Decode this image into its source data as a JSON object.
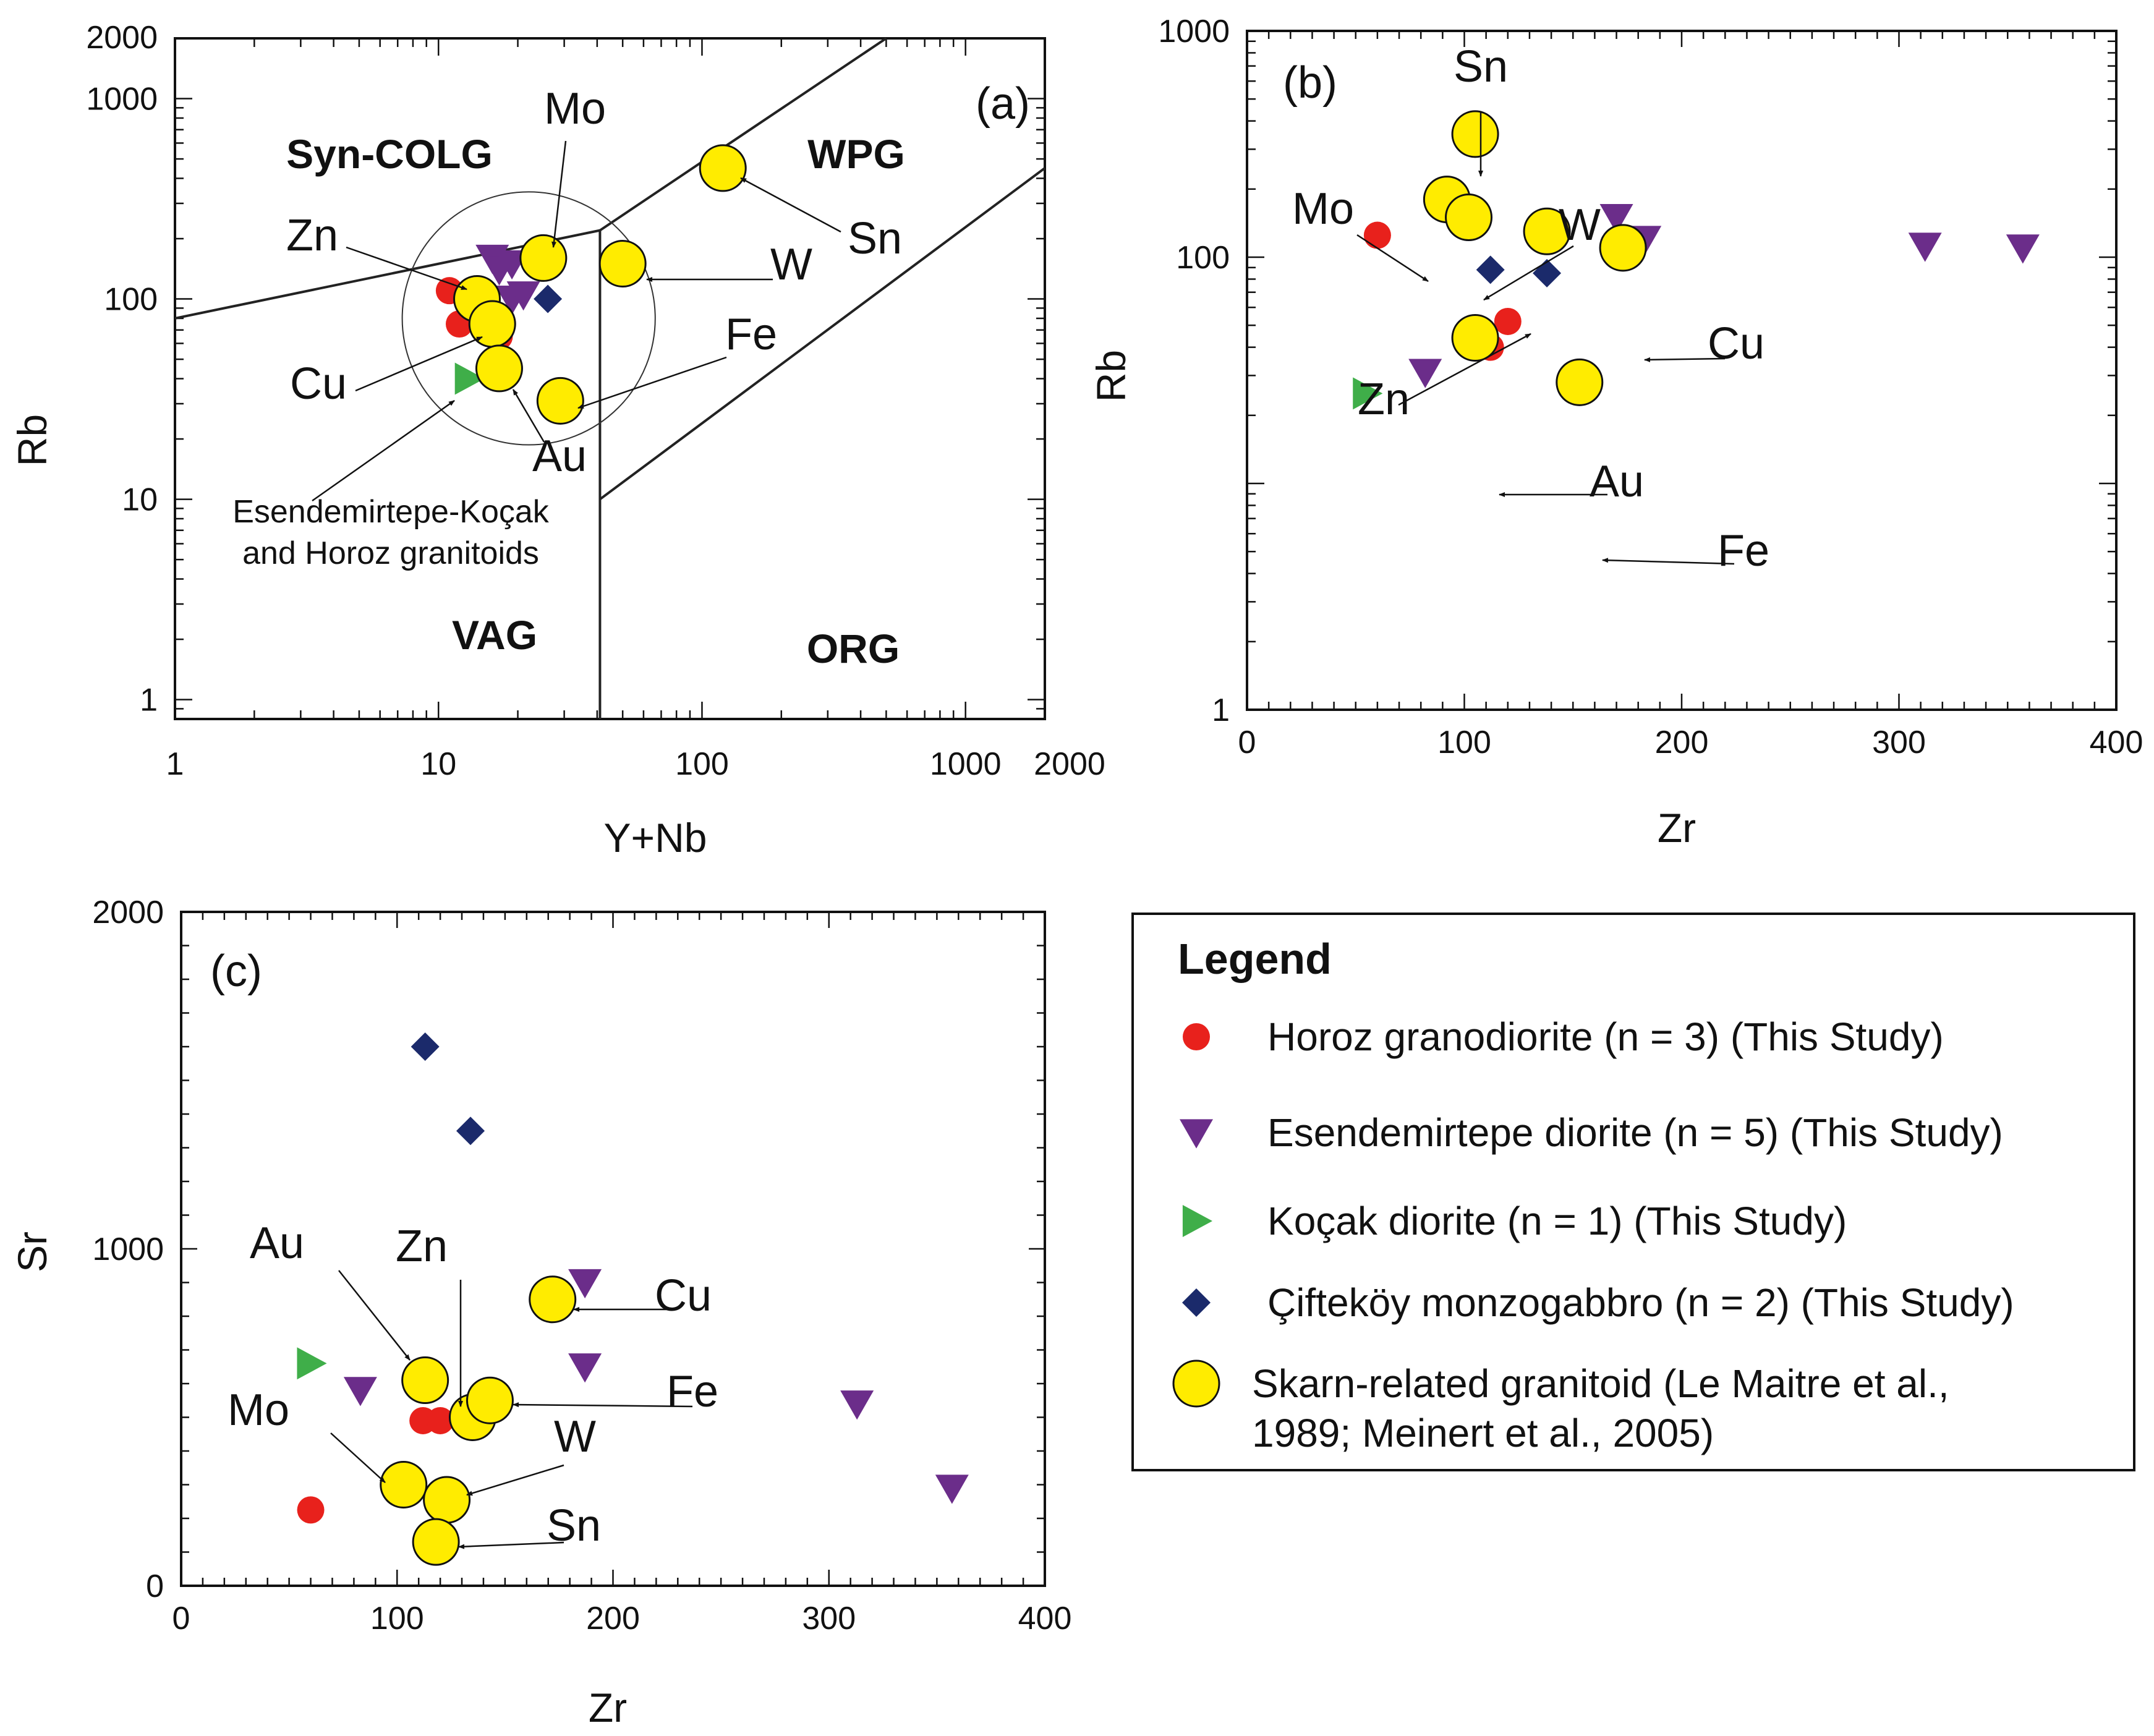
{
  "colors": {
    "horoz": "#e8211c",
    "esendemirtepe": "#6b2d8a",
    "kocak": "#3fae49",
    "ciftekoy": "#1b2a6b",
    "skarn": "#ffec00"
  },
  "legend": {
    "title": "Legend",
    "items": [
      {
        "key": "horoz",
        "marker": "circle",
        "label": "Horoz granodiorite (n = 3) (This Study)"
      },
      {
        "key": "esendemirtepe",
        "marker": "triangle-down",
        "label": "Esendemirtepe diorite (n = 5) (This Study)"
      },
      {
        "key": "kocak",
        "marker": "triangle-right",
        "label": "Koçak diorite (n = 1) (This Study)"
      },
      {
        "key": "ciftekoy",
        "marker": "diamond",
        "label": "Çifteköy monzogabbro (n = 2) (This Study)"
      },
      {
        "key": "skarn",
        "marker": "big-circle",
        "label_line1": "Skarn-related granitoid (Le Maitre et al.,",
        "label_line2": "1989; Meinert et al., 2005)"
      }
    ]
  },
  "chart_data": [
    {
      "id": "a",
      "type": "scatter",
      "panel_label": "(a)",
      "xlabel": "Y+Nb",
      "ylabel": "Rb",
      "xscale": "log",
      "yscale": "log",
      "xlim": [
        1,
        2000
      ],
      "ylim": [
        0.8,
        2000
      ],
      "xticks": [
        "1",
        "10",
        "100",
        "1000",
        "2000"
      ],
      "xtick_values": [
        1,
        10,
        100,
        1000,
        2000
      ],
      "yticks": [
        "1",
        "10",
        "100",
        "1000",
        "2000"
      ],
      "ytick_values": [
        1,
        10,
        100,
        1000,
        2000
      ],
      "fields": [
        "Syn-COLG",
        "WPG",
        "VAG",
        "ORG"
      ],
      "boundaries": [
        {
          "x": [
            1,
            41,
            41
          ],
          "y": [
            80,
            220,
            0.8
          ]
        },
        {
          "x": [
            41,
            500
          ],
          "y": [
            220,
            2000
          ]
        },
        {
          "x": [
            41,
            2000
          ],
          "y": [
            10,
            450
          ]
        }
      ],
      "group_note": [
        "Esendemirtepe-Koçak",
        "and Horoz granitoids"
      ],
      "circle_note": {
        "center": [
          22,
          80
        ],
        "radius_decades": 0.48
      },
      "series": [
        {
          "key": "horoz",
          "name": "Horoz granodiorite",
          "points": [
            [
              11,
              110
            ],
            [
              12,
              75
            ],
            [
              17,
              65
            ]
          ]
        },
        {
          "key": "esendemirtepe",
          "name": "Esendemirtepe diorite",
          "points": [
            [
              16,
              160
            ],
            [
              17,
              140
            ],
            [
              19,
              150
            ],
            [
              19,
              100
            ],
            [
              21,
              105
            ]
          ]
        },
        {
          "key": "kocak",
          "name": "Koçak diorite",
          "points": [
            [
              13,
              40
            ]
          ]
        },
        {
          "key": "ciftekoy",
          "name": "Çifteköy monzogabbro",
          "points": [
            [
              26,
              100
            ]
          ]
        },
        {
          "key": "skarn",
          "name": "Skarn-related granitoid",
          "points": [
            {
              "label": "Mo",
              "x": 25,
              "y": 160
            },
            {
              "label": "Sn",
              "x": 120,
              "y": 450
            },
            {
              "label": "W",
              "x": 50,
              "y": 150
            },
            {
              "label": "Zn",
              "x": 14,
              "y": 100
            },
            {
              "label": "Cu",
              "x": 16,
              "y": 75
            },
            {
              "label": "Au",
              "x": 17,
              "y": 45
            },
            {
              "label": "Fe",
              "x": 29,
              "y": 31
            }
          ]
        }
      ]
    },
    {
      "id": "b",
      "type": "scatter",
      "panel_label": "(b)",
      "xlabel": "Zr",
      "ylabel": "Rb",
      "xscale": "linear",
      "yscale": "log",
      "xlim": [
        0,
        400
      ],
      "ylim": [
        1,
        1000
      ],
      "xticks": [
        "0",
        "100",
        "200",
        "300",
        "400"
      ],
      "xtick_values": [
        0,
        100,
        200,
        300,
        400
      ],
      "yticks": [
        "1",
        "100",
        "1000"
      ],
      "ytick_values": [
        1,
        100,
        1000
      ],
      "series": [
        {
          "key": "horoz",
          "name": "Horoz granodiorite",
          "points": [
            [
              60,
              125
            ],
            [
              120,
              52
            ],
            [
              112,
              40
            ]
          ]
        },
        {
          "key": "esendemirtepe",
          "name": "Esendemirtepe diorite",
          "points": [
            [
              170,
              150
            ],
            [
              183,
              120
            ],
            [
              312,
              112
            ],
            [
              357,
              110
            ],
            [
              82,
              31
            ]
          ]
        },
        {
          "key": "kocak",
          "name": "Koçak diorite",
          "points": [
            [
              55,
              25
            ]
          ]
        },
        {
          "key": "ciftekoy",
          "name": "Çifteköy monzogabbro",
          "points": [
            [
              112,
              88
            ],
            [
              138,
              85
            ]
          ]
        },
        {
          "key": "skarn",
          "name": "Skarn-related granitoid",
          "points": [
            {
              "label": "Sn",
              "x": 105,
              "y": 350
            },
            {
              "label": "Mo",
              "x": 92,
              "y": 180
            },
            {
              "label": "W",
              "x": 102,
              "y": 150
            },
            {
              "label": "Zn",
              "x": 138,
              "y": 130
            },
            {
              "label": "Cu",
              "x": 173,
              "y": 110
            },
            {
              "label": "Au",
              "x": 105,
              "y": 44
            },
            {
              "label": "Fe",
              "x": 153,
              "y": 28
            }
          ]
        }
      ]
    },
    {
      "id": "c",
      "type": "scatter",
      "panel_label": "(c)",
      "xlabel": "Zr",
      "ylabel": "Sr",
      "xscale": "linear",
      "yscale": "linear",
      "xlim": [
        0,
        400
      ],
      "ylim": [
        0,
        2000
      ],
      "xticks": [
        "0",
        "100",
        "200",
        "300",
        "400"
      ],
      "xtick_values": [
        0,
        100,
        200,
        300,
        400
      ],
      "yticks": [
        "0",
        "1000",
        "2000"
      ],
      "ytick_values": [
        0,
        1000,
        2000
      ],
      "series": [
        {
          "key": "horoz",
          "name": "Horoz granodiorite",
          "points": [
            [
              60,
              225
            ],
            [
              112,
              490
            ],
            [
              120,
              490
            ]
          ]
        },
        {
          "key": "esendemirtepe",
          "name": "Esendemirtepe diorite",
          "points": [
            [
              83,
              580
            ],
            [
              187,
              900
            ],
            [
              187,
              650
            ],
            [
              313,
              540
            ],
            [
              357,
              290
            ]
          ]
        },
        {
          "key": "kocak",
          "name": "Koçak diorite",
          "points": [
            [
              60,
              660
            ]
          ]
        },
        {
          "key": "ciftekoy",
          "name": "Çifteköy monzogabbro",
          "points": [
            [
              113,
              1600
            ],
            [
              134,
              1350
            ]
          ]
        },
        {
          "key": "skarn",
          "name": "Skarn-related granitoid",
          "points": [
            {
              "label": "Cu",
              "x": 172,
              "y": 850
            },
            {
              "label": "Au",
              "x": 113,
              "y": 610
            },
            {
              "label": "Zn",
              "x": 135,
              "y": 500
            },
            {
              "label": "Fe",
              "x": 143,
              "y": 550
            },
            {
              "label": "Mo",
              "x": 103,
              "y": 300
            },
            {
              "label": "W",
              "x": 123,
              "y": 255
            },
            {
              "label": "Sn",
              "x": 118,
              "y": 130
            }
          ]
        }
      ]
    }
  ]
}
